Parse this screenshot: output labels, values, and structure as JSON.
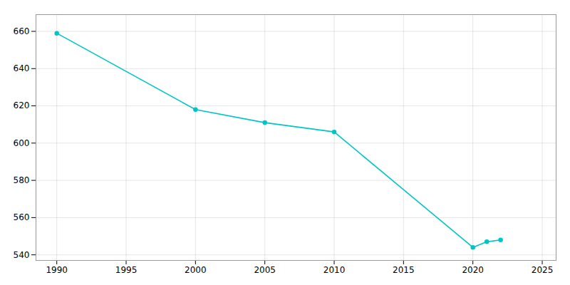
{
  "chart_data": {
    "type": "line",
    "x": [
      1990,
      2000,
      2005,
      2010,
      2020,
      2021,
      2022
    ],
    "values": [
      659,
      618,
      611,
      606,
      544,
      547,
      548
    ],
    "color": "#00C5C5",
    "marker": "circle",
    "xlim": [
      1988.5,
      2026
    ],
    "ylim": [
      537,
      669
    ],
    "xticks": [
      1990,
      1995,
      2000,
      2005,
      2010,
      2015,
      2020,
      2025
    ],
    "yticks": [
      540,
      560,
      580,
      600,
      620,
      640,
      660
    ],
    "grid": true
  }
}
